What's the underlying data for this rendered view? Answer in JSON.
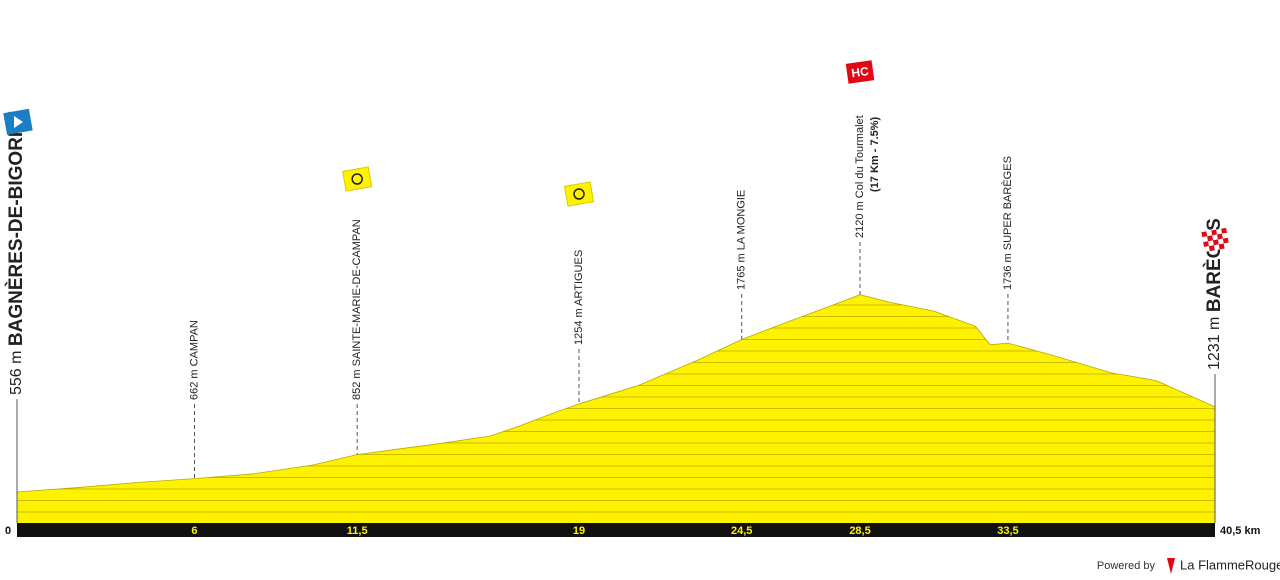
{
  "chart_data": {
    "type": "area",
    "color": "#fff200",
    "km": [
      0,
      2,
      4,
      6,
      8,
      10,
      11.5,
      13,
      14,
      16,
      17,
      18,
      19,
      21,
      23,
      24.5,
      26,
      27.5,
      28.5,
      29.5,
      31,
      32.4,
      32.9,
      33.5,
      35,
      37,
      38.5,
      40.5
    ],
    "elevation": [
      556,
      590,
      630,
      662,
      700,
      770,
      852,
      900,
      930,
      1000,
      1080,
      1170,
      1254,
      1400,
      1600,
      1765,
      1900,
      2030,
      2120,
      2060,
      1990,
      1870,
      1723,
      1736,
      1640,
      1500,
      1440,
      1231
    ],
    "ylim": [
      310,
      2300
    ],
    "xlim": [
      0,
      40.5
    ],
    "xticks": [
      0,
      6,
      {
        "value": 11.5,
        "label": "11,5"
      },
      19,
      {
        "value": 24.5,
        "label": "24,5"
      },
      {
        "value": 28.5,
        "label": "28,5"
      },
      {
        "value": 33.5,
        "label": "33,5"
      },
      {
        "value": 40.5,
        "label": "40,5 km"
      }
    ],
    "points": [
      {
        "km": 0,
        "elevation": 556,
        "elevation_label": "556 m",
        "name": "BAGNÈRES-DE-BIGORRE",
        "marker": "start"
      },
      {
        "km": 6,
        "elevation": 662,
        "elevation_label": "662 m",
        "name": "CAMPAN"
      },
      {
        "km": 11.5,
        "elevation": 852,
        "elevation_label": "852 m",
        "name": "SAINTE-MARIE-DE-CAMPAN",
        "marker": "sprint"
      },
      {
        "km": 19,
        "elevation": 1254,
        "elevation_label": "1254 m",
        "name": "ARTIGUES",
        "marker": "sprint"
      },
      {
        "km": 24.5,
        "elevation": 1765,
        "elevation_label": "1765 m",
        "name": "LA MONGIE"
      },
      {
        "km": 28.5,
        "elevation": 2120,
        "elevation_label": "2120 m",
        "name": "Col du Tourmalet",
        "detail": "(17 Km - 7.5%)",
        "category": "HC"
      },
      {
        "km": 33.5,
        "elevation": 1736,
        "elevation_label": "1736 m",
        "name": "SUPER BARÈGES"
      },
      {
        "km": 40.5,
        "elevation": 1231,
        "elevation_label": "1231 m",
        "name": "BARÈGES",
        "marker": "finish"
      }
    ]
  },
  "footer": {
    "powered": "Powered by",
    "brand": "La FlammeRouge"
  }
}
